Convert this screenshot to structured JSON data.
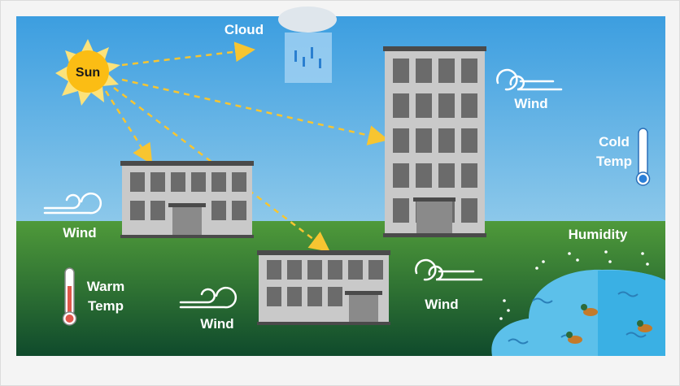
{
  "scene": {
    "sun": "Sun",
    "cloud": "Cloud",
    "winds": [
      "Wind",
      "Wind",
      "Wind",
      "Wind"
    ],
    "cold_temp": [
      "Cold",
      "Temp"
    ],
    "warm_temp": [
      "Warm",
      "Temp"
    ],
    "humidity": "Humidity"
  }
}
